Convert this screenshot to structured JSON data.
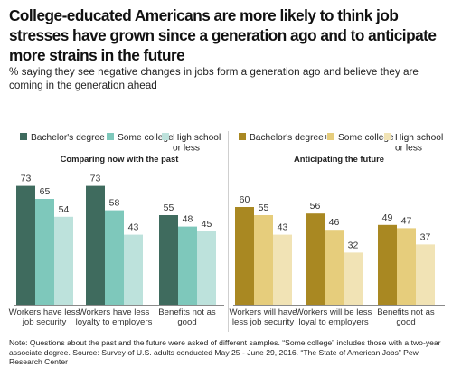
{
  "title": "College-educated Americans are more likely to think job stresses have grown since a generation ago and to anticipate more strains in the future",
  "subtitle": "% saying they see negative changes in jobs form a generation ago and believe they are coming in the generation ahead",
  "note": "Note: Questions about the past and the future were asked of different samples. “Some college” includes those with a two-year associate degree. Source: Survey of U.S. adults conducted May 25 - June 29, 2016. “The State of American Jobs”",
  "source_org": "Pew Research Center",
  "chart_data": [
    {
      "type": "bar",
      "title": "Comparing now with the past",
      "categories": [
        "Workers have less job security",
        "Workers have less loyalty to employers",
        "Benefits not as good"
      ],
      "category_lines": [
        [
          "Workers have less",
          "job security"
        ],
        [
          "Workers have less",
          "loyalty to employers"
        ],
        [
          "Benefits not as",
          "good"
        ]
      ],
      "series": [
        {
          "name": "Bachelor's degree+",
          "name_lines": [
            "Bachelor's degree+"
          ],
          "values": [
            73,
            73,
            55
          ],
          "color": "#3f6b5e"
        },
        {
          "name": "Some college",
          "name_lines": [
            "Some college"
          ],
          "values": [
            65,
            58,
            48
          ],
          "color": "#7ec8bb"
        },
        {
          "name": "High school or less",
          "name_lines": [
            "High school",
            "or less"
          ],
          "values": [
            54,
            43,
            45
          ],
          "color": "#bde2dc"
        }
      ],
      "ylim": [
        0,
        100
      ],
      "grid": false,
      "legend": "top"
    },
    {
      "type": "bar",
      "title": "Anticipating the future",
      "categories": [
        "Workers will have less job security",
        "Workers will be less loyal to employers",
        "Benefits not as good"
      ],
      "category_lines": [
        [
          "Workers will have",
          "less job security"
        ],
        [
          "Workers will be less",
          "loyal to employers"
        ],
        [
          "Benefits not as",
          "good"
        ]
      ],
      "series": [
        {
          "name": "Bachelor's degree+",
          "name_lines": [
            "Bachelor's degree+"
          ],
          "values": [
            60,
            56,
            49
          ],
          "color": "#a98822"
        },
        {
          "name": "Some college",
          "name_lines": [
            "Some college"
          ],
          "values": [
            55,
            46,
            47
          ],
          "color": "#e6cd7c"
        },
        {
          "name": "High school or less",
          "name_lines": [
            "High school",
            "or less"
          ],
          "values": [
            43,
            32,
            37
          ],
          "color": "#f1e3b5"
        }
      ],
      "ylim": [
        0,
        100
      ],
      "grid": false,
      "legend": "top"
    }
  ]
}
